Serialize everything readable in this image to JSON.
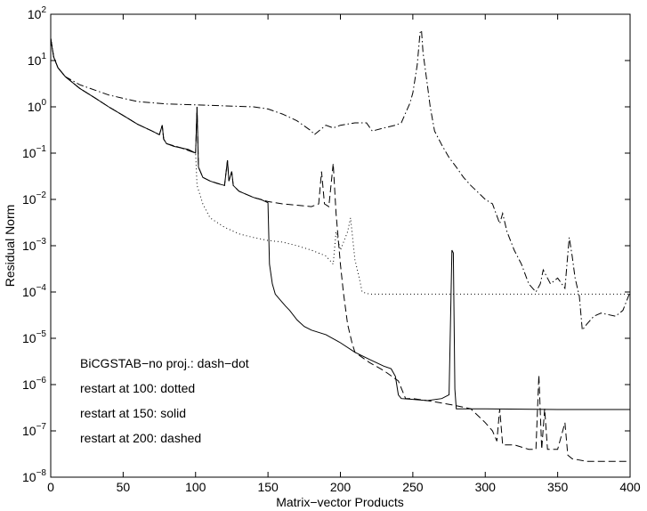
{
  "chart_data": {
    "type": "line",
    "xlabel": "Matrix−vector Products",
    "ylabel": "Residual Norm",
    "xlim": [
      0,
      400
    ],
    "ylim": [
      1e-08,
      100
    ],
    "yscale": "log",
    "grid": false,
    "x_ticks": [
      "0",
      "50",
      "100",
      "150",
      "200",
      "250",
      "300",
      "350",
      "400"
    ],
    "y_ticks": [
      {
        "base": "10",
        "exp": "2"
      },
      {
        "base": "10",
        "exp": "1"
      },
      {
        "base": "10",
        "exp": "0"
      },
      {
        "base": "10",
        "exp": "−1"
      },
      {
        "base": "10",
        "exp": "−2"
      },
      {
        "base": "10",
        "exp": "−3"
      },
      {
        "base": "10",
        "exp": "−4"
      },
      {
        "base": "10",
        "exp": "−5"
      },
      {
        "base": "10",
        "exp": "−6"
      },
      {
        "base": "10",
        "exp": "−7"
      },
      {
        "base": "10",
        "exp": "−8"
      }
    ],
    "annotations": [
      "BiCGSTAB−no proj.: dash−dot",
      "restart at 100: dotted",
      "restart at 150: solid",
      "restart at 200: dashed"
    ],
    "series": [
      {
        "style": "dash-dot",
        "points": [
          [
            0,
            30
          ],
          [
            2,
            12
          ],
          [
            5,
            7
          ],
          [
            10,
            4.5
          ],
          [
            20,
            3
          ],
          [
            40,
            1.8
          ],
          [
            60,
            1.3
          ],
          [
            80,
            1.15
          ],
          [
            100,
            1.1
          ],
          [
            120,
            1.05
          ],
          [
            140,
            1.0
          ],
          [
            150,
            0.9
          ],
          [
            160,
            0.7
          ],
          [
            170,
            0.5
          ],
          [
            180,
            0.3
          ],
          [
            182,
            0.25
          ],
          [
            185,
            0.3
          ],
          [
            190,
            0.4
          ],
          [
            195,
            0.35
          ],
          [
            200,
            0.4
          ],
          [
            210,
            0.45
          ],
          [
            218,
            0.45
          ],
          [
            222,
            0.3
          ],
          [
            230,
            0.35
          ],
          [
            238,
            0.4
          ],
          [
            242,
            0.45
          ],
          [
            248,
            1.2
          ],
          [
            250,
            2
          ],
          [
            253,
            8
          ],
          [
            255,
            40
          ],
          [
            256,
            45
          ],
          [
            257,
            15
          ],
          [
            260,
            3
          ],
          [
            262,
            1
          ],
          [
            265,
            0.3
          ],
          [
            270,
            0.15
          ],
          [
            275,
            0.08
          ],
          [
            280,
            0.05
          ],
          [
            285,
            0.03
          ],
          [
            290,
            0.02
          ],
          [
            300,
            0.01
          ],
          [
            305,
            0.008
          ],
          [
            310,
            0.003
          ],
          [
            312,
            0.005
          ],
          [
            315,
            0.002
          ],
          [
            320,
            0.0008
          ],
          [
            325,
            0.0004
          ],
          [
            330,
            0.00015
          ],
          [
            335,
            0.0001
          ],
          [
            338,
            0.00015
          ],
          [
            340,
            0.0003
          ],
          [
            345,
            0.00015
          ],
          [
            350,
            0.0002
          ],
          [
            355,
            0.00012
          ],
          [
            358,
            0.0015
          ],
          [
            360,
            0.0006
          ],
          [
            362,
            0.0002
          ],
          [
            365,
            8e-05
          ],
          [
            367,
            1.5e-05
          ],
          [
            370,
            2e-05
          ],
          [
            375,
            3e-05
          ],
          [
            380,
            3.5e-05
          ],
          [
            390,
            3e-05
          ],
          [
            395,
            4e-05
          ],
          [
            400,
            0.0001
          ]
        ]
      },
      {
        "style": "solid",
        "points": [
          [
            0,
            30
          ],
          [
            2,
            12
          ],
          [
            5,
            7
          ],
          [
            10,
            4.5
          ],
          [
            20,
            2.5
          ],
          [
            30,
            1.6
          ],
          [
            40,
            1.0
          ],
          [
            50,
            0.65
          ],
          [
            60,
            0.42
          ],
          [
            70,
            0.3
          ],
          [
            75,
            0.25
          ],
          [
            77,
            0.4
          ],
          [
            78,
            0.2
          ],
          [
            80,
            0.16
          ],
          [
            85,
            0.14
          ],
          [
            90,
            0.13
          ],
          [
            95,
            0.12
          ],
          [
            100,
            0.1
          ],
          [
            101,
            1.0
          ],
          [
            102,
            0.05
          ],
          [
            105,
            0.03
          ],
          [
            110,
            0.025
          ],
          [
            115,
            0.022
          ],
          [
            120,
            0.02
          ],
          [
            122,
            0.07
          ],
          [
            123,
            0.025
          ],
          [
            125,
            0.04
          ],
          [
            126,
            0.02
          ],
          [
            130,
            0.015
          ],
          [
            140,
            0.011
          ],
          [
            145,
            0.01
          ],
          [
            150,
            0.0085
          ],
          [
            151,
            0.0004
          ],
          [
            153,
            0.00015
          ],
          [
            155,
            9e-05
          ],
          [
            158,
            7e-05
          ],
          [
            162,
            5e-05
          ],
          [
            165,
            4e-05
          ],
          [
            170,
            2.5e-05
          ],
          [
            175,
            1.8e-05
          ],
          [
            180,
            1.5e-05
          ],
          [
            190,
            1.2e-05
          ],
          [
            200,
            8e-06
          ],
          [
            210,
            5e-06
          ],
          [
            220,
            3.5e-06
          ],
          [
            230,
            2.5e-06
          ],
          [
            235,
            2.2e-06
          ],
          [
            238,
            1.5e-06
          ],
          [
            240,
            6e-07
          ],
          [
            242,
            5e-07
          ],
          [
            250,
            4.8e-07
          ],
          [
            260,
            4.5e-07
          ],
          [
            270,
            5e-07
          ],
          [
            275,
            6e-07
          ],
          [
            277,
            0.0008
          ],
          [
            278,
            0.0007
          ],
          [
            279,
            8e-07
          ],
          [
            280,
            3e-07
          ],
          [
            290,
            3e-07
          ],
          [
            300,
            3e-07
          ],
          [
            350,
            2.9e-07
          ],
          [
            400,
            2.9e-07
          ]
        ]
      },
      {
        "style": "dotted",
        "points": [
          [
            0,
            30
          ],
          [
            2,
            12
          ],
          [
            5,
            7
          ],
          [
            10,
            4.5
          ],
          [
            20,
            2.5
          ],
          [
            30,
            1.6
          ],
          [
            40,
            1.0
          ],
          [
            50,
            0.65
          ],
          [
            60,
            0.42
          ],
          [
            70,
            0.3
          ],
          [
            75,
            0.25
          ],
          [
            77,
            0.4
          ],
          [
            78,
            0.2
          ],
          [
            80,
            0.16
          ],
          [
            90,
            0.13
          ],
          [
            100,
            0.1
          ],
          [
            101,
            0.02
          ],
          [
            105,
            0.008
          ],
          [
            110,
            0.004
          ],
          [
            120,
            0.0025
          ],
          [
            130,
            0.0018
          ],
          [
            140,
            0.0015
          ],
          [
            150,
            0.0013
          ],
          [
            160,
            0.0012
          ],
          [
            170,
            0.001
          ],
          [
            180,
            0.0008
          ],
          [
            190,
            0.0006
          ],
          [
            195,
            0.0004
          ],
          [
            197,
            0.002
          ],
          [
            200,
            0.0008
          ],
          [
            205,
            0.002
          ],
          [
            207,
            0.004
          ],
          [
            210,
            0.0005
          ],
          [
            213,
            0.0002
          ],
          [
            215,
            0.0001
          ],
          [
            220,
            9e-05
          ],
          [
            250,
            9e-05
          ],
          [
            300,
            9e-05
          ],
          [
            350,
            9e-05
          ],
          [
            400,
            9e-05
          ]
        ]
      },
      {
        "style": "dashed",
        "points": [
          [
            0,
            30
          ],
          [
            2,
            12
          ],
          [
            5,
            7
          ],
          [
            10,
            4.5
          ],
          [
            20,
            2.5
          ],
          [
            30,
            1.6
          ],
          [
            40,
            1.0
          ],
          [
            50,
            0.65
          ],
          [
            60,
            0.42
          ],
          [
            70,
            0.3
          ],
          [
            75,
            0.25
          ],
          [
            77,
            0.4
          ],
          [
            78,
            0.2
          ],
          [
            80,
            0.16
          ],
          [
            90,
            0.13
          ],
          [
            100,
            0.1
          ],
          [
            101,
            1.0
          ],
          [
            102,
            0.05
          ],
          [
            105,
            0.03
          ],
          [
            110,
            0.025
          ],
          [
            120,
            0.02
          ],
          [
            122,
            0.07
          ],
          [
            123,
            0.025
          ],
          [
            125,
            0.04
          ],
          [
            126,
            0.02
          ],
          [
            130,
            0.015
          ],
          [
            140,
            0.011
          ],
          [
            150,
            0.009
          ],
          [
            160,
            0.008
          ],
          [
            170,
            0.0075
          ],
          [
            180,
            0.007
          ],
          [
            185,
            0.008
          ],
          [
            187,
            0.04
          ],
          [
            189,
            0.008
          ],
          [
            192,
            0.007
          ],
          [
            195,
            0.06
          ],
          [
            197,
            0.005
          ],
          [
            200,
            0.0004
          ],
          [
            202,
            0.0001
          ],
          [
            205,
            2e-05
          ],
          [
            208,
            8e-06
          ],
          [
            210,
            5e-06
          ],
          [
            220,
            3e-06
          ],
          [
            230,
            2e-06
          ],
          [
            240,
            1.2e-06
          ],
          [
            245,
            5e-07
          ],
          [
            250,
            5e-07
          ],
          [
            260,
            4.5e-07
          ],
          [
            270,
            4e-07
          ],
          [
            280,
            3.5e-07
          ],
          [
            290,
            3e-07
          ],
          [
            300,
            1.5e-07
          ],
          [
            305,
            1e-07
          ],
          [
            308,
            6e-08
          ],
          [
            310,
            3e-07
          ],
          [
            312,
            5e-08
          ],
          [
            320,
            5e-08
          ],
          [
            330,
            4e-08
          ],
          [
            335,
            4e-08
          ],
          [
            337,
            1.6e-06
          ],
          [
            339,
            4e-08
          ],
          [
            341,
            3e-07
          ],
          [
            343,
            4e-08
          ],
          [
            350,
            4e-08
          ],
          [
            355,
            1.5e-07
          ],
          [
            357,
            3e-08
          ],
          [
            360,
            2.5e-08
          ],
          [
            370,
            2.2e-08
          ],
          [
            380,
            2.2e-08
          ],
          [
            400,
            2.2e-08
          ]
        ]
      }
    ]
  }
}
